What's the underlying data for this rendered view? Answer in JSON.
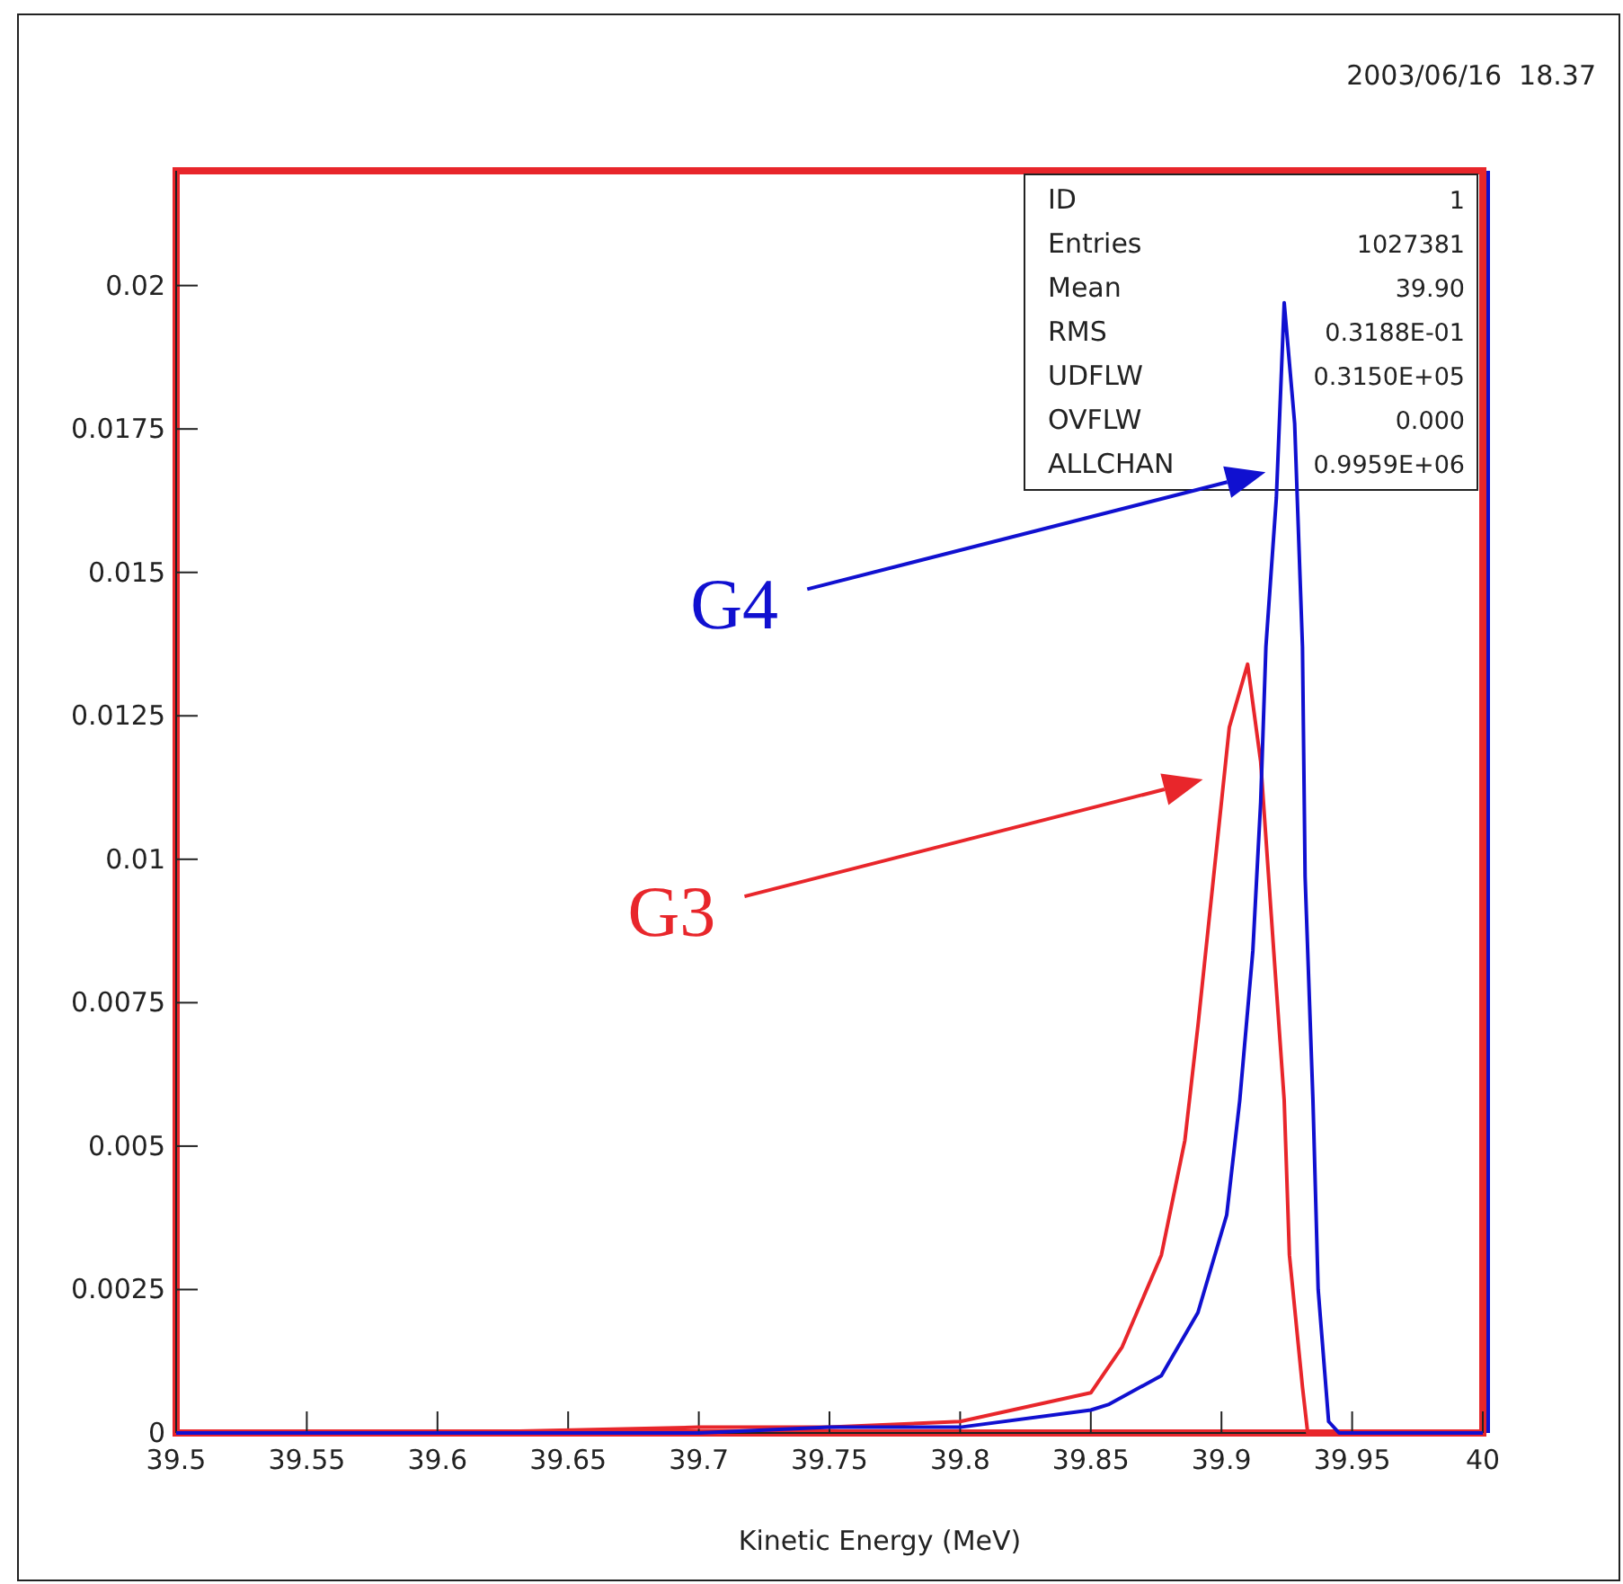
{
  "chart_data": {
    "type": "line",
    "xlabel": "Kinetic Energy (MeV)",
    "xlim": [
      39.5,
      40
    ],
    "ylim": [
      0,
      0.022
    ],
    "xticks": [
      39.5,
      39.55,
      39.6,
      39.65,
      39.7,
      39.75,
      39.8,
      39.85,
      39.9,
      39.95,
      40
    ],
    "yticks": [
      0,
      0.0025,
      0.005,
      0.0075,
      0.01,
      0.0125,
      0.015,
      0.0175,
      0.02
    ],
    "grid": false,
    "annotations": [
      "2003/06/16  18.37",
      "ID",
      "1",
      "Entries",
      "1027381",
      "Mean",
      "39.90",
      "RMS",
      "0.3188E-01",
      "UDFLW",
      "0.3150E+05",
      "OVFLW",
      "0.000",
      "ALLCHAN",
      "0.9959E+06"
    ],
    "series": [
      {
        "name": "G3",
        "color": "#e8262b",
        "x": [
          39.5,
          39.6,
          39.7,
          39.75,
          39.8,
          39.85,
          39.862,
          39.877,
          39.886,
          39.891,
          39.897,
          39.903,
          39.91,
          39.915,
          39.92,
          39.924,
          39.926,
          39.931,
          39.933,
          39.95,
          40
        ],
        "values": [
          0,
          0,
          0.0001,
          0.0001,
          0.0002,
          0.0007,
          0.0015,
          0.0031,
          0.0051,
          0.0071,
          0.0097,
          0.0123,
          0.0134,
          0.0117,
          0.0084,
          0.0058,
          0.0031,
          0.0008,
          0,
          0,
          0
        ]
      },
      {
        "name": "G4",
        "color": "#1010d0",
        "x": [
          39.5,
          39.7,
          39.75,
          39.8,
          39.85,
          39.857,
          39.877,
          39.891,
          39.902,
          39.907,
          39.912,
          39.915,
          39.917,
          39.921,
          39.924,
          39.928,
          39.931,
          39.932,
          39.935,
          39.937,
          39.941,
          39.945,
          40
        ],
        "values": [
          0,
          0,
          0.0001,
          0.0001,
          0.0004,
          0.0005,
          0.001,
          0.0021,
          0.0038,
          0.0058,
          0.0084,
          0.011,
          0.0137,
          0.0163,
          0.0197,
          0.0176,
          0.0137,
          0.0097,
          0.0058,
          0.0025,
          0.0002,
          0,
          0
        ]
      }
    ]
  }
}
